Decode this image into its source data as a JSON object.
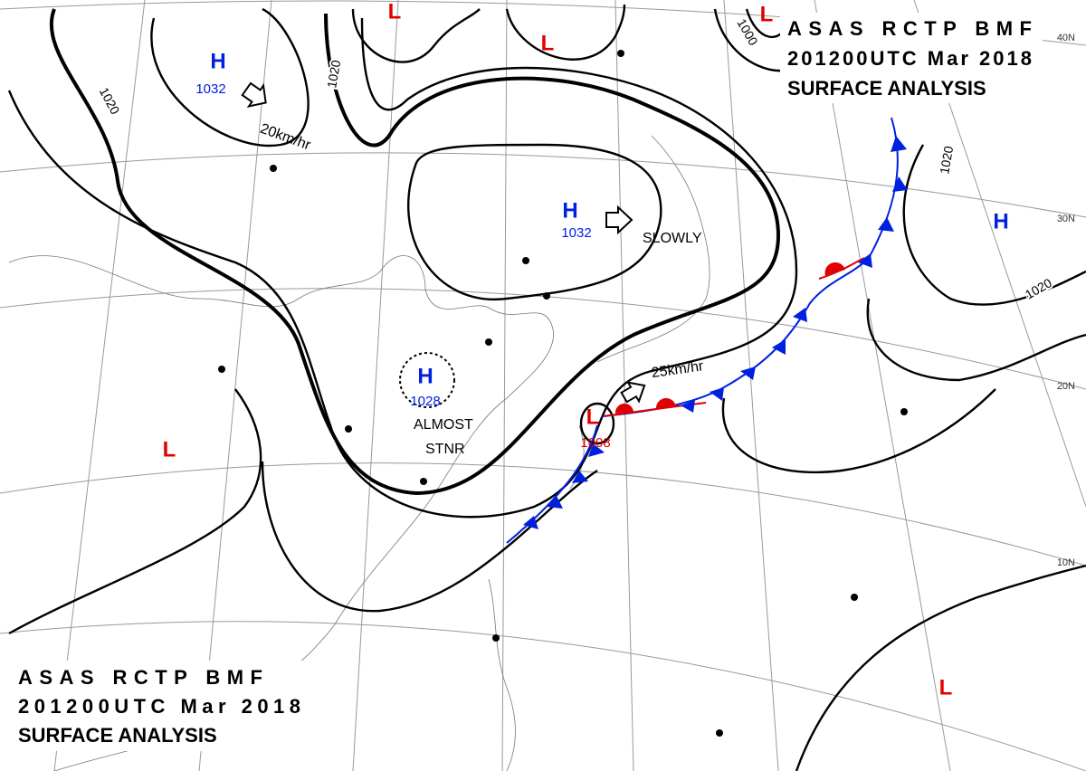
{
  "header": {
    "line1": "ASAS RCTP BMF",
    "line2": "201200UTC Mar 2018",
    "line3": "SURFACE ANALYSIS"
  },
  "pressure_centers": [
    {
      "symbol": "H",
      "value": 1032
    },
    {
      "symbol": "H",
      "value": 1032
    },
    {
      "symbol": "H",
      "value": 1028
    },
    {
      "symbol": "L",
      "value": 1008
    },
    {
      "symbol": "L"
    },
    {
      "symbol": "L"
    },
    {
      "symbol": "L"
    },
    {
      "symbol": "H"
    },
    {
      "symbol": "L"
    },
    {
      "symbol": "L"
    }
  ],
  "isobar_labels": [
    1020,
    1020,
    1000,
    1020,
    1020
  ],
  "movement": [
    "20km/hr",
    "SLOWLY",
    "25km/hr",
    "ALMOST",
    "STNR"
  ],
  "latitude_labels": [
    "40N",
    "30N",
    "20N",
    "10N"
  ]
}
